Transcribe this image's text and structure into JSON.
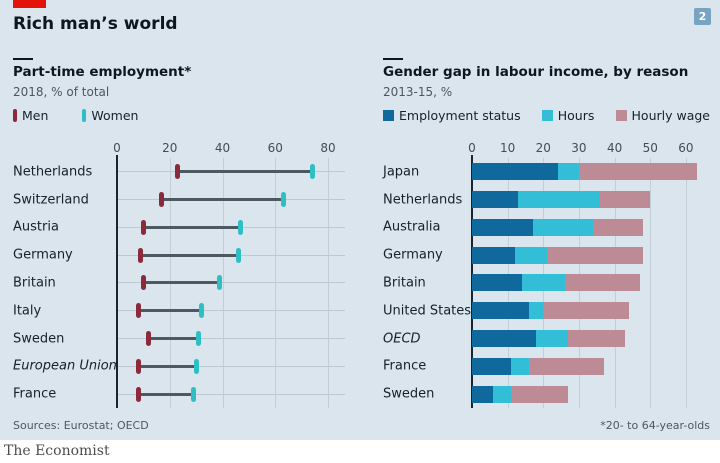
{
  "header": {
    "title": "Rich man’s world",
    "badge": "2",
    "brand_color": "#e3120b"
  },
  "footer": {
    "sources": "Sources: Eurostat; OECD",
    "footnote": "*20- to 64-year-olds",
    "brand": "The Economist"
  },
  "colors": {
    "card_background": "#dae5ee",
    "men": "#8a2a3b",
    "women": "#2ebfc5",
    "employment_status": "#10699c",
    "hours": "#31bed6",
    "hourly_wage": "#bc8b96"
  },
  "chart_data": [
    {
      "type": "scatter",
      "variant": "dumbbell",
      "title": "Part-time employment*",
      "subtitle": "2018, % of total",
      "xlim": [
        0,
        80
      ],
      "xticks": [
        0,
        20,
        40,
        60,
        80
      ],
      "legend": [
        {
          "label": "Men",
          "color": "#8a2a3b"
        },
        {
          "label": "Women",
          "color": "#2ebfc5"
        }
      ],
      "categories": [
        "Netherlands",
        "Switzerland",
        "Austria",
        "Germany",
        "Britain",
        "Italy",
        "Sweden",
        "European Union",
        "France"
      ],
      "italic_categories": [
        "European Union"
      ],
      "series": [
        {
          "name": "Men",
          "color": "#8a2a3b",
          "values": [
            23,
            17,
            10,
            9,
            10,
            8,
            12,
            8,
            8
          ]
        },
        {
          "name": "Women",
          "color": "#2ebfc5",
          "values": [
            74,
            63,
            47,
            46,
            39,
            32,
            31,
            30,
            29
          ]
        }
      ]
    },
    {
      "type": "bar",
      "variant": "stacked-horizontal",
      "title": "Gender gap in labour income, by reason",
      "subtitle": "2013-15, %",
      "xlim": [
        0,
        60
      ],
      "xticks": [
        0,
        10,
        20,
        30,
        40,
        50,
        60
      ],
      "legend": [
        {
          "label": "Employment status",
          "color": "#10699c"
        },
        {
          "label": "Hours",
          "color": "#31bed6"
        },
        {
          "label": "Hourly wage",
          "color": "#bc8b96"
        }
      ],
      "categories": [
        "Japan",
        "Netherlands",
        "Australia",
        "Germany",
        "Britain",
        "United States",
        "OECD",
        "France",
        "Sweden"
      ],
      "italic_categories": [
        "OECD"
      ],
      "series": [
        {
          "name": "Employment status",
          "color": "#10699c",
          "values": [
            24,
            13,
            17,
            12,
            14,
            16,
            18,
            11,
            6
          ]
        },
        {
          "name": "Hours",
          "color": "#31bed6",
          "values": [
            6,
            23,
            17,
            9,
            12,
            4,
            9,
            5,
            5
          ]
        },
        {
          "name": "Hourly wage",
          "color": "#bc8b96",
          "values": [
            33,
            14,
            14,
            27,
            21,
            24,
            16,
            21,
            16
          ]
        }
      ]
    }
  ]
}
